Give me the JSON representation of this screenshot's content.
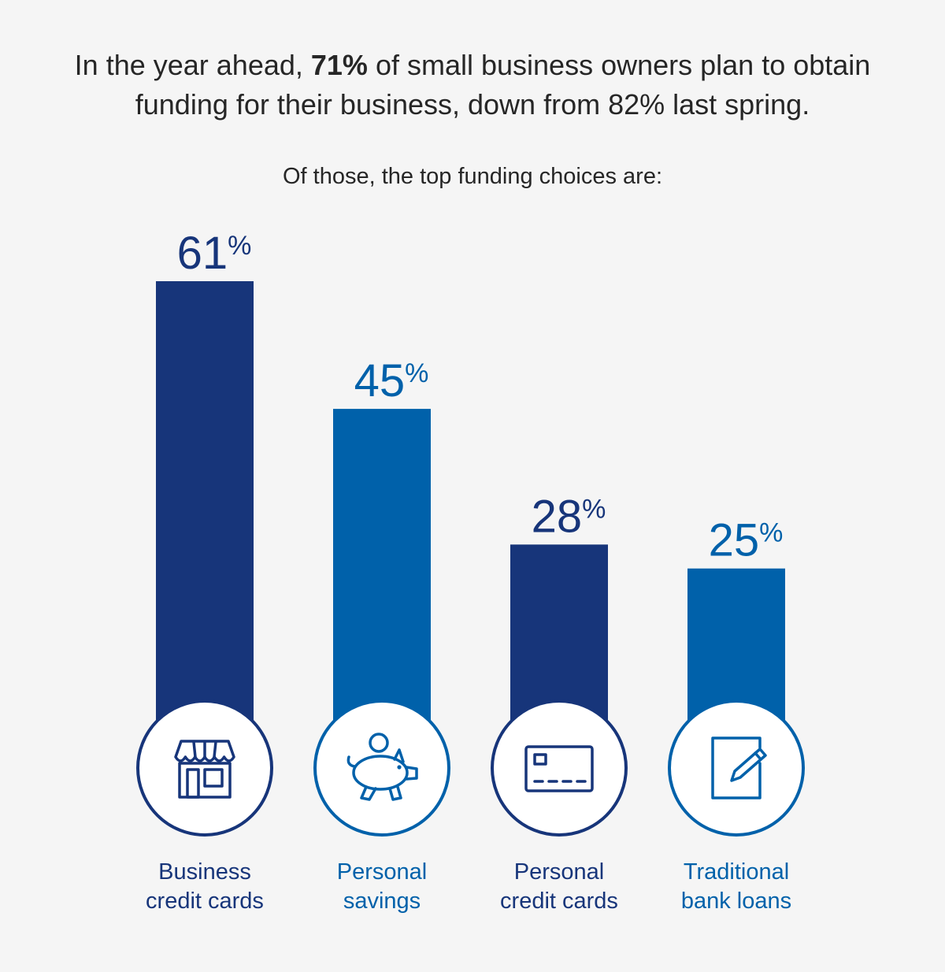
{
  "headline": {
    "part1": "In the year ahead, ",
    "highlight": "71%",
    "part2": " of small business owners plan to obtain",
    "line2": "funding for their business, down from 82% last spring."
  },
  "subhead": "Of those, the top funding choices are:",
  "colors": {
    "navy": "#17357a",
    "blue": "#0061aa",
    "background": "#f5f5f5"
  },
  "chart_data": {
    "type": "bar",
    "categories": [
      "Business credit cards",
      "Personal savings",
      "Personal credit cards",
      "Traditional bank loans"
    ],
    "category_lines": [
      [
        "Business",
        "credit cards"
      ],
      [
        "Personal",
        "savings"
      ],
      [
        "Personal",
        "credit cards"
      ],
      [
        "Traditional",
        "bank loans"
      ]
    ],
    "values": [
      61,
      45,
      28,
      25
    ],
    "value_labels": [
      "61",
      "45",
      "28",
      "25"
    ],
    "value_suffix": "%",
    "bar_colors": [
      "#17357a",
      "#0061aa",
      "#17357a",
      "#0061aa"
    ],
    "icons": [
      "storefront-icon",
      "piggy-bank-icon",
      "credit-card-icon",
      "document-pen-icon"
    ],
    "ylim": [
      0,
      61
    ],
    "grid": false,
    "legend": "none"
  }
}
